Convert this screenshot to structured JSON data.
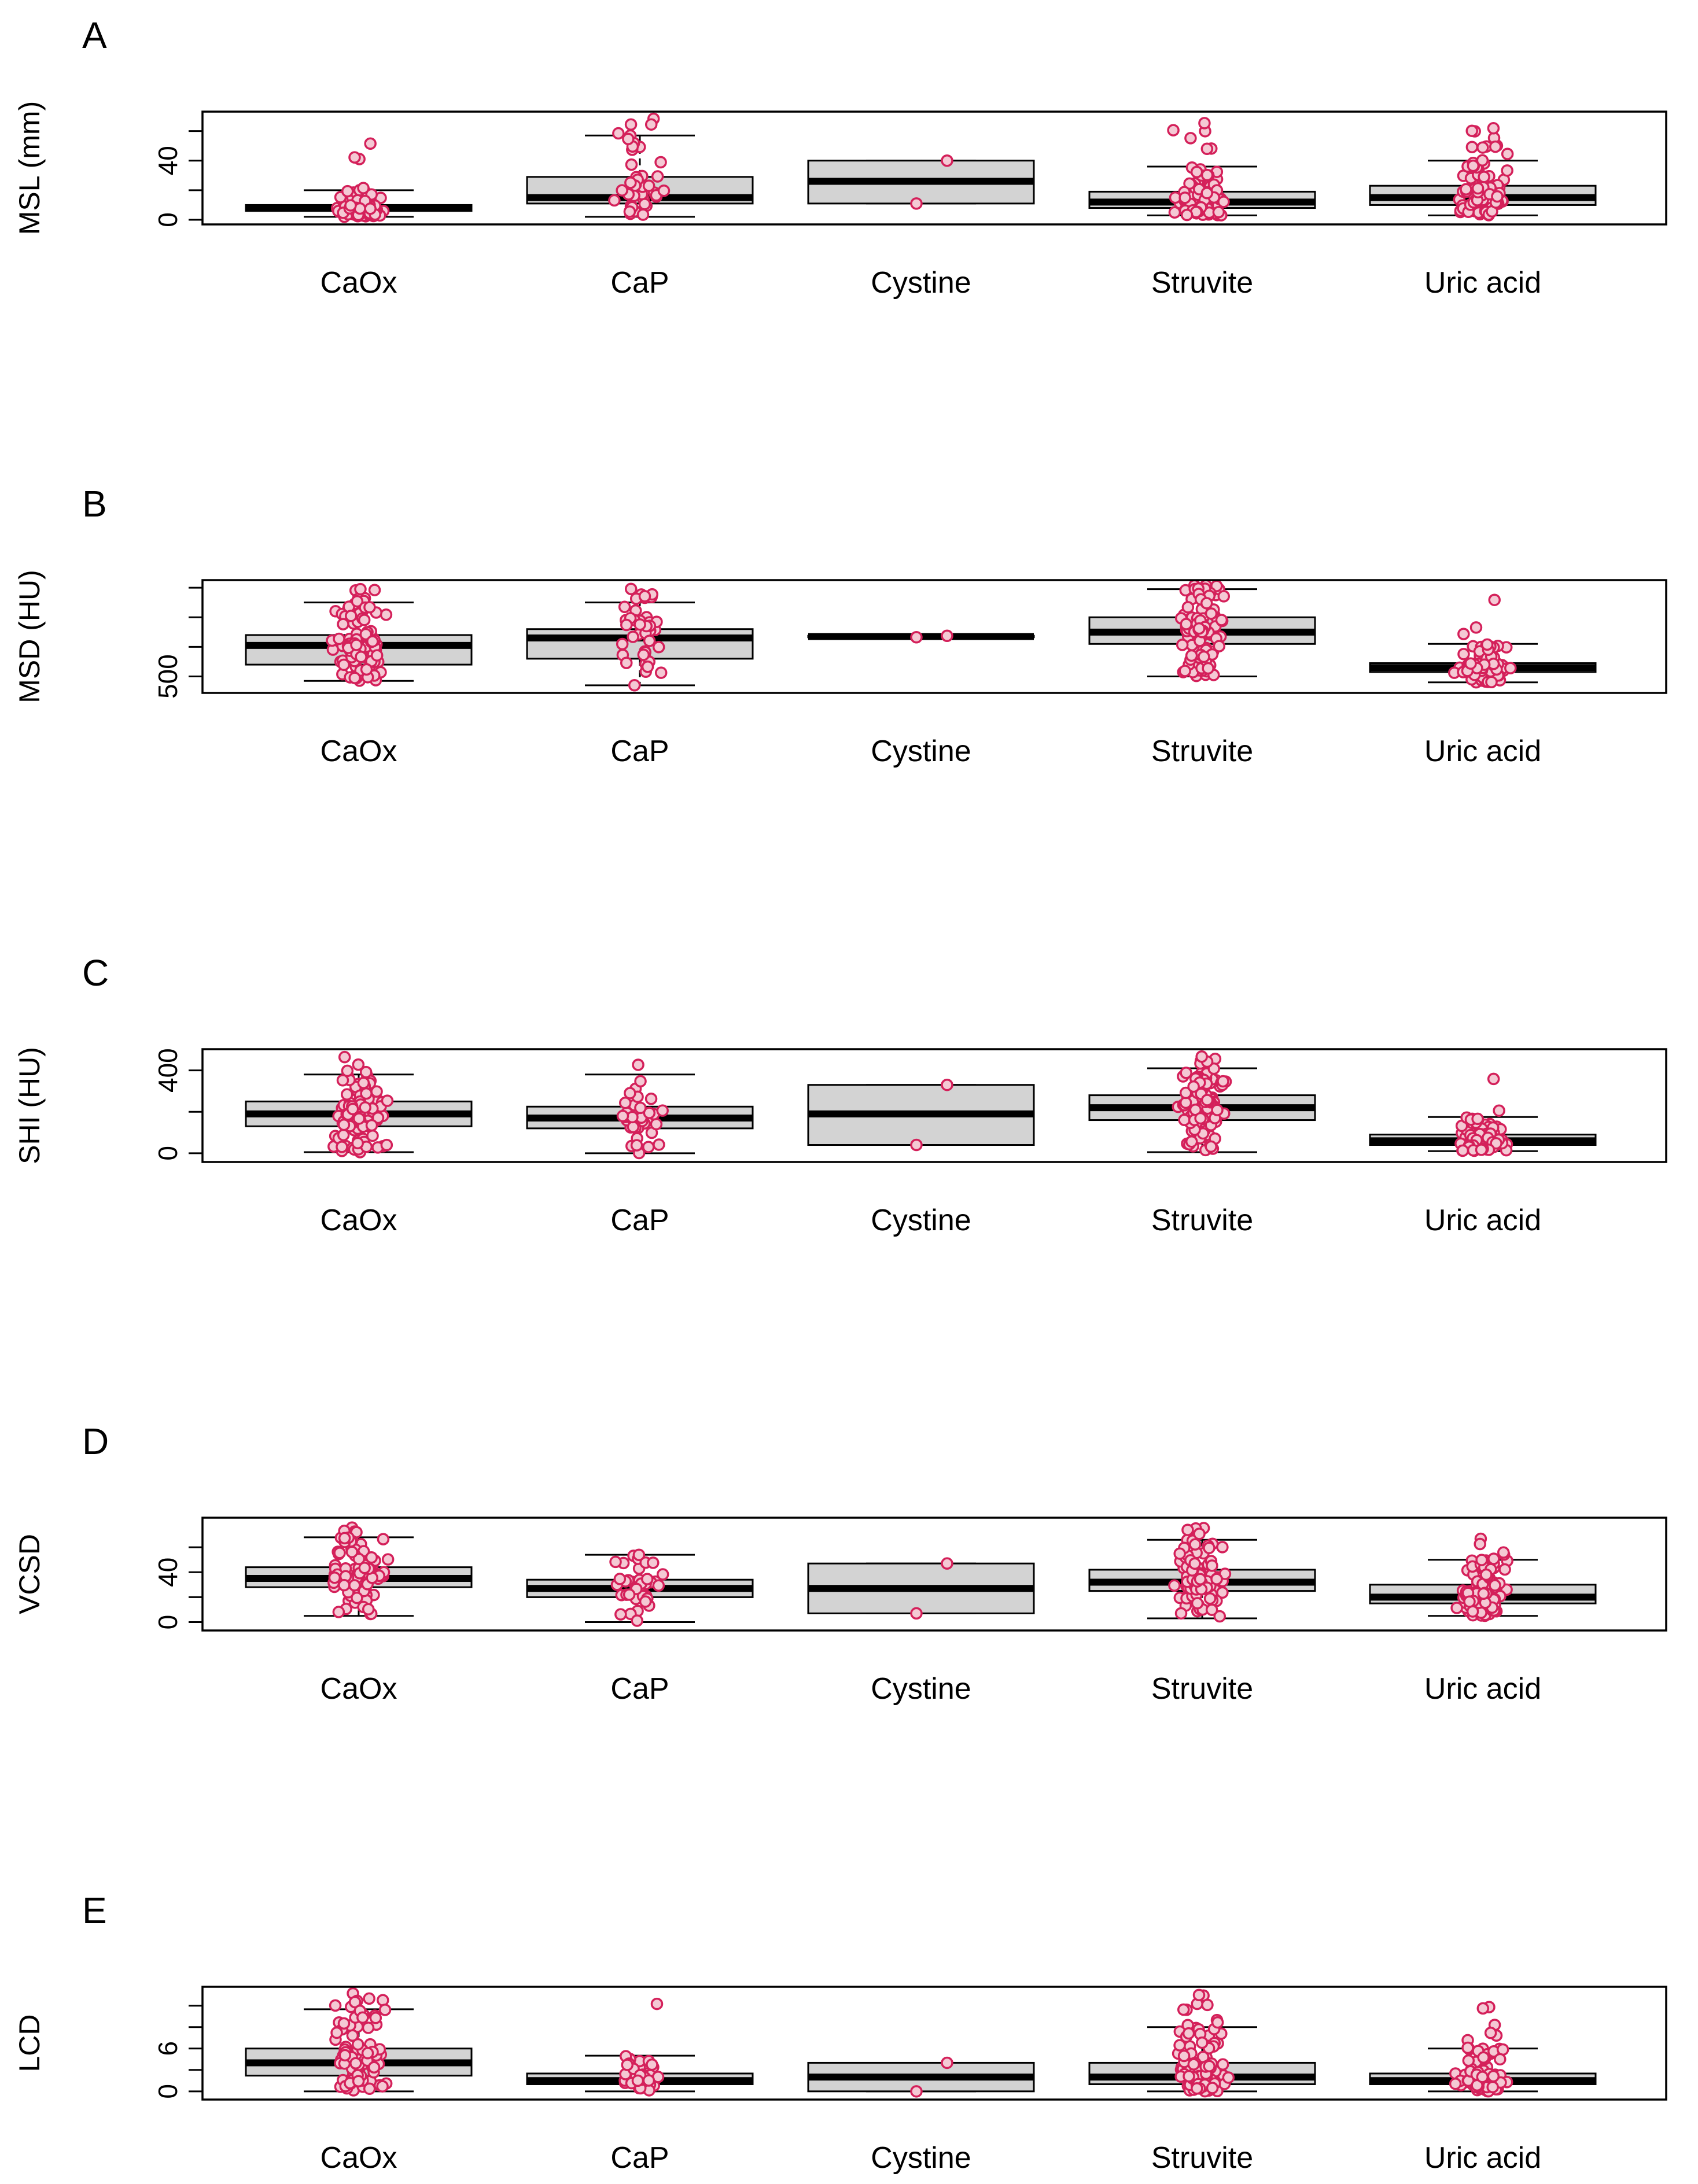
{
  "figure": {
    "colors": {
      "box_fill": "#d3d3d3",
      "box_stroke": "#000000",
      "point_fill": "#f4c9d4",
      "point_stroke": "#d4205a"
    }
  },
  "chart_data": [
    {
      "type": "box",
      "panel_label": "A",
      "ylabel": "MSL (mm)",
      "ylim": [
        0,
        70
      ],
      "yticks": [
        0,
        20,
        40,
        60
      ],
      "ytick_labels": [
        "0",
        "",
        "40",
        ""
      ],
      "categories": [
        "CaOx",
        "CaP",
        "Cystine",
        "Struvite",
        "Uric acid"
      ],
      "boxes": [
        {
          "name": "CaOx",
          "q1": 6,
          "median": 8,
          "q3": 10,
          "whisker_low": 2,
          "whisker_high": 20
        },
        {
          "name": "CaP",
          "q1": 11,
          "median": 15,
          "q3": 29,
          "whisker_low": 2,
          "whisker_high": 57
        },
        {
          "name": "Cystine",
          "q1": 11,
          "median": 26,
          "q3": 40,
          "whisker_low": 11,
          "whisker_high": 40
        },
        {
          "name": "Struvite",
          "q1": 8,
          "median": 12,
          "q3": 19,
          "whisker_low": 3,
          "whisker_high": 36
        },
        {
          "name": "Uric acid",
          "q1": 10,
          "median": 15,
          "q3": 23,
          "whisker_low": 3,
          "whisker_high": 40
        }
      ]
    },
    {
      "type": "box",
      "panel_label": "B",
      "ylabel": "MSD (HU)",
      "ylim": [
        420,
        1120
      ],
      "yticks": [
        500,
        700,
        900,
        1100
      ],
      "ytick_labels": [
        "500",
        "",
        "",
        ""
      ],
      "categories": [
        "CaOx",
        "CaP",
        "Cystine",
        "Struvite",
        "Uric acid"
      ],
      "boxes": [
        {
          "name": "CaOx",
          "q1": 580,
          "median": 710,
          "q3": 780,
          "whisker_low": 470,
          "whisker_high": 1000
        },
        {
          "name": "CaP",
          "q1": 620,
          "median": 760,
          "q3": 820,
          "whisker_low": 440,
          "whisker_high": 1000
        },
        {
          "name": "Cystine",
          "q1": 765,
          "median": 770,
          "q3": 775,
          "whisker_low": 765,
          "whisker_high": 775
        },
        {
          "name": "Struvite",
          "q1": 720,
          "median": 800,
          "q3": 900,
          "whisker_low": 500,
          "whisker_high": 1090
        },
        {
          "name": "Uric acid",
          "q1": 530,
          "median": 560,
          "q3": 590,
          "whisker_low": 460,
          "whisker_high": 720
        }
      ]
    },
    {
      "type": "box",
      "panel_label": "C",
      "ylabel": "SHI (HU)",
      "ylim": [
        -20,
        480
      ],
      "yticks": [
        0,
        200,
        400
      ],
      "ytick_labels": [
        "0",
        "",
        "400"
      ],
      "categories": [
        "CaOx",
        "CaP",
        "Cystine",
        "Struvite",
        "Uric acid"
      ],
      "boxes": [
        {
          "name": "CaOx",
          "q1": 130,
          "median": 190,
          "q3": 250,
          "whisker_low": 5,
          "whisker_high": 380
        },
        {
          "name": "CaP",
          "q1": 120,
          "median": 170,
          "q3": 225,
          "whisker_low": 0,
          "whisker_high": 380
        },
        {
          "name": "Cystine",
          "q1": 40,
          "median": 190,
          "q3": 330,
          "whisker_low": 40,
          "whisker_high": 330
        },
        {
          "name": "Struvite",
          "q1": 160,
          "median": 220,
          "q3": 280,
          "whisker_low": 5,
          "whisker_high": 410
        },
        {
          "name": "Uric acid",
          "q1": 40,
          "median": 60,
          "q3": 90,
          "whisker_low": 10,
          "whisker_high": 175
        }
      ]
    },
    {
      "type": "box",
      "panel_label": "D",
      "ylabel": "VCSD",
      "ylim": [
        -3,
        80
      ],
      "yticks": [
        0,
        20,
        40,
        60
      ],
      "ytick_labels": [
        "0",
        "",
        "40",
        ""
      ],
      "categories": [
        "CaOx",
        "CaP",
        "Cystine",
        "Struvite",
        "Uric acid"
      ],
      "boxes": [
        {
          "name": "CaOx",
          "q1": 28,
          "median": 35,
          "q3": 44,
          "whisker_low": 5,
          "whisker_high": 68
        },
        {
          "name": "CaP",
          "q1": 20,
          "median": 27,
          "q3": 34,
          "whisker_low": 0,
          "whisker_high": 54
        },
        {
          "name": "Cystine",
          "q1": 7,
          "median": 27,
          "q3": 47,
          "whisker_low": 7,
          "whisker_high": 47
        },
        {
          "name": "Struvite",
          "q1": 25,
          "median": 32,
          "q3": 42,
          "whisker_low": 3,
          "whisker_high": 66
        },
        {
          "name": "Uric acid",
          "q1": 15,
          "median": 20,
          "q3": 30,
          "whisker_low": 5,
          "whisker_high": 50
        }
      ]
    },
    {
      "type": "box",
      "panel_label": "E",
      "ylabel": "LCD",
      "ylim": [
        -0.5,
        14
      ],
      "yticks": [
        0,
        3,
        6,
        9,
        12
      ],
      "ytick_labels": [
        "0",
        "",
        "6",
        "",
        ""
      ],
      "categories": [
        "CaOx",
        "CaP",
        "Cystine",
        "Struvite",
        "Uric acid"
      ],
      "boxes": [
        {
          "name": "CaOx",
          "q1": 2.2,
          "median": 4,
          "q3": 6,
          "whisker_low": 0,
          "whisker_high": 11.5
        },
        {
          "name": "CaP",
          "q1": 1,
          "median": 1.5,
          "q3": 2.5,
          "whisker_low": 0,
          "whisker_high": 5
        },
        {
          "name": "Cystine",
          "q1": 0,
          "median": 2,
          "q3": 4,
          "whisker_low": 0,
          "whisker_high": 4
        },
        {
          "name": "Struvite",
          "q1": 1,
          "median": 2,
          "q3": 4,
          "whisker_low": 0,
          "whisker_high": 9
        },
        {
          "name": "Uric acid",
          "q1": 1,
          "median": 1.5,
          "q3": 2.5,
          "whisker_low": 0,
          "whisker_high": 6
        }
      ]
    }
  ]
}
